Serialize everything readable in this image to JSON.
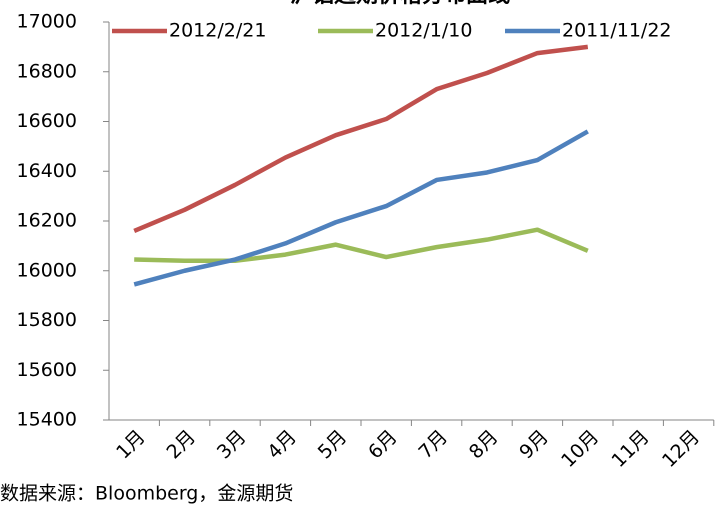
{
  "chart_data": {
    "type": "line",
    "title": "沪铝远期价格分布曲线",
    "categories": [
      "1月",
      "2月",
      "3月",
      "4月",
      "5月",
      "6月",
      "7月",
      "8月",
      "9月",
      "10月",
      "11月",
      "12月"
    ],
    "series": [
      {
        "name": "2012/2/21",
        "color": "#c0504d",
        "values": [
          16160,
          16245,
          16345,
          16455,
          16545,
          16610,
          16730,
          16795,
          16875,
          16900,
          null,
          null
        ]
      },
      {
        "name": "2012/1/10",
        "color": "#9bbb59",
        "values": [
          16045,
          16040,
          16040,
          16065,
          16105,
          16055,
          16095,
          16125,
          16165,
          16080,
          null,
          null
        ]
      },
      {
        "name": "2011/11/22",
        "color": "#4f81bd",
        "values": [
          15945,
          16000,
          16045,
          16110,
          16195,
          16260,
          16365,
          16395,
          16445,
          16560,
          null,
          null
        ]
      }
    ],
    "ylim": [
      15400,
      17000
    ],
    "yticks": [
      15400,
      15600,
      15800,
      16000,
      16200,
      16400,
      16600,
      16800,
      17000
    ],
    "grid": false,
    "legend": "top",
    "source": "数据来源：Bloomberg，金源期货"
  }
}
